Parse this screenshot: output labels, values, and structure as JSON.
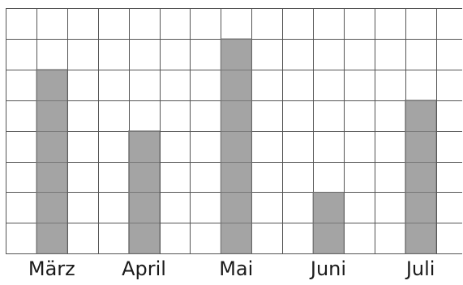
{
  "chart_data": {
    "type": "bar",
    "categories": [
      "März",
      "April",
      "Mai",
      "Juni",
      "Juli"
    ],
    "values": [
      6,
      4,
      7,
      2,
      5
    ],
    "ylim": [
      0,
      8
    ],
    "grid": true,
    "bar_color": "#a4a4a4",
    "grid_color": "#555555"
  }
}
